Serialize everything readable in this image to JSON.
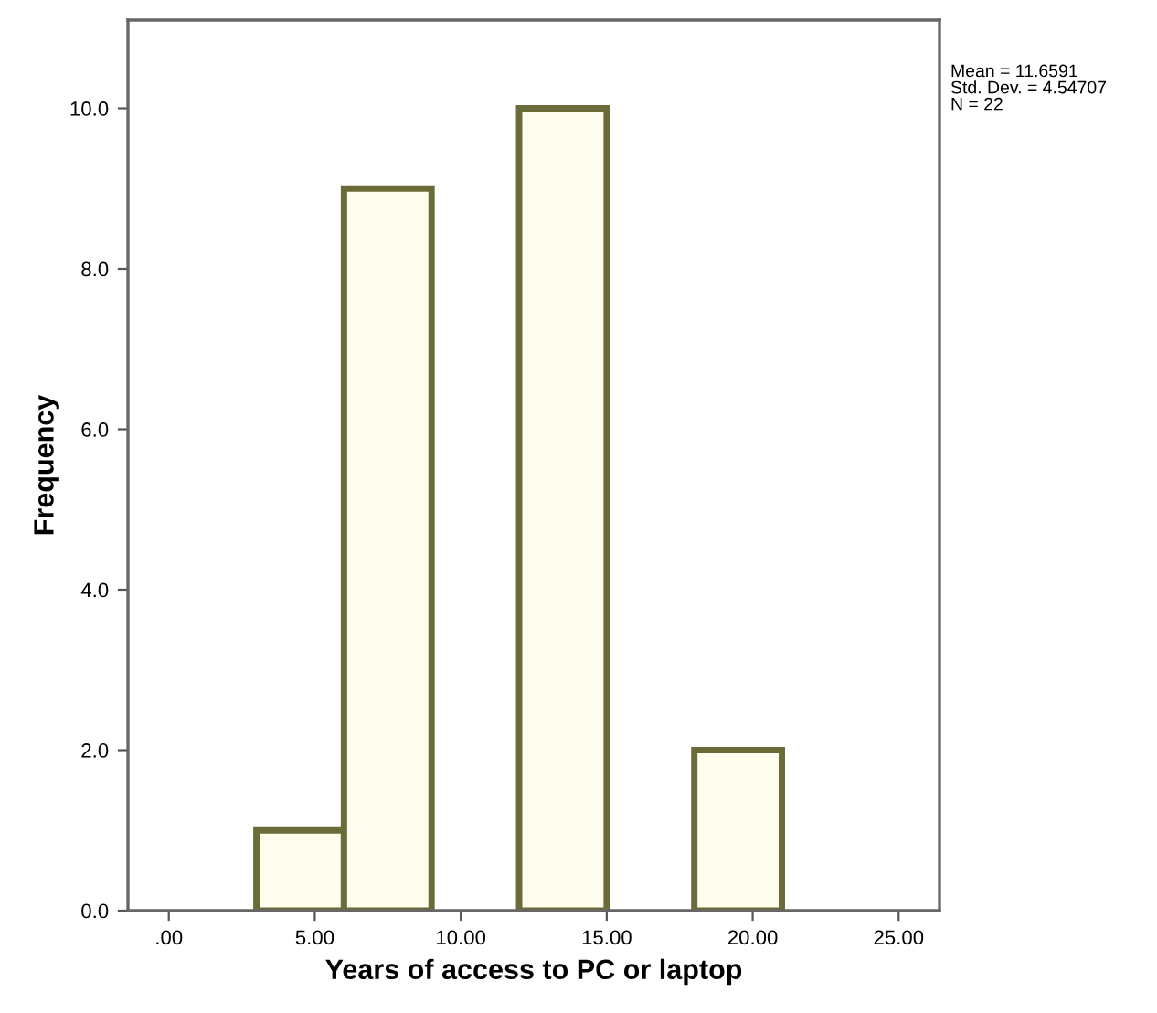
{
  "chart_data": {
    "type": "histogram",
    "xlabel": "Years of access to PC or laptop",
    "ylabel": "Frequency",
    "bins": [
      3,
      6,
      9,
      12,
      15,
      18,
      21
    ],
    "values": [
      1,
      9,
      0,
      10,
      0,
      2
    ],
    "color": "#fdfdee",
    "xlim": [
      -1.4,
      26.4
    ],
    "ylim": [
      0,
      11.1
    ],
    "xticks": [
      {
        "value": 0,
        "label": ".00"
      },
      {
        "value": 5,
        "label": "5.00"
      },
      {
        "value": 10,
        "label": "10.00"
      },
      {
        "value": 15,
        "label": "15.00"
      },
      {
        "value": 20,
        "label": "20.00"
      },
      {
        "value": 25,
        "label": "25.00"
      }
    ],
    "yticks": [
      {
        "value": 0,
        "label": "0.0"
      },
      {
        "value": 2,
        "label": "2.0"
      },
      {
        "value": 4,
        "label": "4.0"
      },
      {
        "value": 6,
        "label": "6.0"
      },
      {
        "value": 8,
        "label": "8.0"
      },
      {
        "value": 10,
        "label": "10.0"
      }
    ],
    "annotations": [
      "Mean = 11.6591\nStd. Dev. = 4.54707\nN = 22"
    ],
    "grid": false,
    "legend": false
  }
}
